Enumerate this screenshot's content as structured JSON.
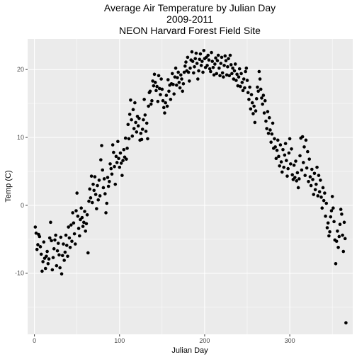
{
  "chart_data": {
    "type": "scatter",
    "title_lines": [
      "Average Air Temperature by Julian Day",
      "2009-2011",
      "NEON Harvard Forest Field Site"
    ],
    "xlabel": "Julian Day",
    "ylabel": "Temp (C)",
    "xlim": [
      -8,
      374
    ],
    "ylim": [
      -19,
      24.5
    ],
    "x_ticks": [
      0,
      100,
      200,
      300
    ],
    "x_tick_labels": [
      "0",
      "100",
      "200",
      "300"
    ],
    "y_ticks": [
      -10,
      0,
      10,
      20
    ],
    "y_tick_labels": [
      "-10",
      "0",
      "10",
      "20"
    ],
    "grid": true,
    "legend": "none",
    "colors": {
      "panel_bg": "#ebebeb",
      "grid_major": "#ffffff",
      "point": "#000000"
    },
    "points": [
      [
        1,
        -3.2
      ],
      [
        2,
        -4.1
      ],
      [
        3,
        -6.5
      ],
      [
        4,
        -5.8
      ],
      [
        5,
        -4.3
      ],
      [
        6,
        -4.6
      ],
      [
        7,
        -6.1
      ],
      [
        8,
        -7.2
      ],
      [
        9,
        -9.7
      ],
      [
        10,
        -8.3
      ],
      [
        11,
        -5.4
      ],
      [
        12,
        -7.8
      ],
      [
        13,
        -9.3
      ],
      [
        14,
        -7.5
      ],
      [
        15,
        -6.8
      ],
      [
        16,
        -8.6
      ],
      [
        17,
        -7.9
      ],
      [
        18,
        -4.8
      ],
      [
        19,
        -2.5
      ],
      [
        20,
        -5.2
      ],
      [
        21,
        -9.5
      ],
      [
        22,
        -7.7
      ],
      [
        23,
        -6.4
      ],
      [
        24,
        -5.1
      ],
      [
        25,
        -4.4
      ],
      [
        26,
        -8.9
      ],
      [
        27,
        -6.7
      ],
      [
        28,
        -5.6
      ],
      [
        29,
        -7.3
      ],
      [
        30,
        -9.2
      ],
      [
        31,
        -4.7
      ],
      [
        32,
        -10.1
      ],
      [
        33,
        -7.4
      ],
      [
        34,
        -5.7
      ],
      [
        35,
        -8.1
      ],
      [
        36,
        -6.9
      ],
      [
        37,
        -4.4
      ],
      [
        38,
        -5.9
      ],
      [
        39,
        -7.5
      ],
      [
        40,
        -3.2
      ],
      [
        41,
        -4.8
      ],
      [
        42,
        -6.2
      ],
      [
        43,
        -2.9
      ],
      [
        44,
        -5.3
      ],
      [
        45,
        -1.1
      ],
      [
        46,
        -2.6
      ],
      [
        47,
        -4.2
      ],
      [
        48,
        -5.7
      ],
      [
        49,
        -0.8
      ],
      [
        50,
        1.8
      ],
      [
        51,
        -1.6
      ],
      [
        52,
        -3.4
      ],
      [
        53,
        -4.5
      ],
      [
        54,
        -2.1
      ],
      [
        55,
        -0.4
      ],
      [
        56,
        -1.8
      ],
      [
        57,
        -3.1
      ],
      [
        58,
        -2.5
      ],
      [
        59,
        -0.9
      ],
      [
        60,
        -3.8
      ],
      [
        61,
        -2.7
      ],
      [
        62,
        -1.4
      ],
      [
        63,
        -7.0
      ],
      [
        64,
        0.6
      ],
      [
        65,
        2.4
      ],
      [
        66,
        1.1
      ],
      [
        67,
        4.3
      ],
      [
        68,
        0.4
      ],
      [
        69,
        3.1
      ],
      [
        70,
        2.2
      ],
      [
        71,
        4.2
      ],
      [
        72,
        1.6
      ],
      [
        73,
        -0.5
      ],
      [
        74,
        2.9
      ],
      [
        75,
        0.8
      ],
      [
        76,
        3.7
      ],
      [
        77,
        1.4
      ],
      [
        78,
        6.7
      ],
      [
        79,
        8.8
      ],
      [
        80,
        5.2
      ],
      [
        81,
        2.6
      ],
      [
        82,
        3.9
      ],
      [
        83,
        1.7
      ],
      [
        84,
        -1.1
      ],
      [
        85,
        0.3
      ],
      [
        86,
        4.1
      ],
      [
        87,
        2.8
      ],
      [
        88,
        3.5
      ],
      [
        89,
        6.1
      ],
      [
        90,
        5.4
      ],
      [
        91,
        4.6
      ],
      [
        92,
        8.9
      ],
      [
        93,
        7.8
      ],
      [
        94,
        5.7
      ],
      [
        95,
        3.1
      ],
      [
        96,
        7.2
      ],
      [
        97,
        6.3
      ],
      [
        98,
        9.4
      ],
      [
        99,
        6.9
      ],
      [
        100,
        5.6
      ],
      [
        101,
        7.7
      ],
      [
        102,
        6.2
      ],
      [
        103,
        4.4
      ],
      [
        104,
        6.6
      ],
      [
        105,
        8.2
      ],
      [
        106,
        7.1
      ],
      [
        107,
        9.9
      ],
      [
        108,
        6.8
      ],
      [
        109,
        8.4
      ],
      [
        110,
        11.9
      ],
      [
        111,
        9.8
      ],
      [
        112,
        13.4
      ],
      [
        113,
        15.5
      ],
      [
        114,
        12.6
      ],
      [
        115,
        10.2
      ],
      [
        116,
        14.1
      ],
      [
        117,
        11.3
      ],
      [
        118,
        15.1
      ],
      [
        119,
        12.2
      ],
      [
        120,
        10.8
      ],
      [
        121,
        13.1
      ],
      [
        122,
        11.7
      ],
      [
        123,
        12.8
      ],
      [
        124,
        9.6
      ],
      [
        125,
        10.6
      ],
      [
        126,
        9.7
      ],
      [
        127,
        11.2
      ],
      [
        128,
        12.6
      ],
      [
        129,
        15.6
      ],
      [
        130,
        13.3
      ],
      [
        131,
        10.9
      ],
      [
        132,
        12.1
      ],
      [
        133,
        9.8
      ],
      [
        134,
        14.6
      ],
      [
        135,
        16.6
      ],
      [
        136,
        16.8
      ],
      [
        137,
        14.9
      ],
      [
        138,
        15.4
      ],
      [
        139,
        18.3
      ],
      [
        140,
        17.6
      ],
      [
        141,
        19.3
      ],
      [
        142,
        18.1
      ],
      [
        143,
        16.9
      ],
      [
        144,
        17.5
      ],
      [
        145,
        15.3
      ],
      [
        146,
        19.1
      ],
      [
        147,
        17.2
      ],
      [
        148,
        16.3
      ],
      [
        149,
        18.6
      ],
      [
        150,
        17.1
      ],
      [
        151,
        15.4
      ],
      [
        152,
        14.4
      ],
      [
        153,
        13.6
      ],
      [
        154,
        15.1
      ],
      [
        155,
        16.2
      ],
      [
        156,
        14.6
      ],
      [
        157,
        18.5
      ],
      [
        158,
        16.8
      ],
      [
        159,
        17.7
      ],
      [
        160,
        15.6
      ],
      [
        161,
        17.9
      ],
      [
        162,
        19.4
      ],
      [
        163,
        17.8
      ],
      [
        164,
        16.4
      ],
      [
        165,
        18.9
      ],
      [
        166,
        20.2
      ],
      [
        167,
        17.7
      ],
      [
        168,
        18.8
      ],
      [
        169,
        19.6
      ],
      [
        170,
        18.1
      ],
      [
        171,
        17.3
      ],
      [
        172,
        19.2
      ],
      [
        173,
        18.6
      ],
      [
        174,
        16.8
      ],
      [
        175,
        17.9
      ],
      [
        176,
        19.6
      ],
      [
        177,
        20.5
      ],
      [
        178,
        21.1
      ],
      [
        179,
        19.8
      ],
      [
        180,
        21.8
      ],
      [
        181,
        19.6
      ],
      [
        182,
        18.3
      ],
      [
        183,
        20.2
      ],
      [
        184,
        21.4
      ],
      [
        185,
        22.6
      ],
      [
        186,
        21.2
      ],
      [
        187,
        19.5
      ],
      [
        188,
        20.4
      ],
      [
        189,
        21.6
      ],
      [
        190,
        22.4
      ],
      [
        191,
        20.9
      ],
      [
        192,
        18.6
      ],
      [
        193,
        19.8
      ],
      [
        194,
        21.5
      ],
      [
        195,
        22.3
      ],
      [
        196,
        20.6
      ],
      [
        197,
        21.2
      ],
      [
        198,
        19.6
      ],
      [
        199,
        22.8
      ],
      [
        200,
        21.6
      ],
      [
        201,
        20.3
      ],
      [
        202,
        21.8
      ],
      [
        203,
        20.6
      ],
      [
        204,
        22.1
      ],
      [
        205,
        21.4
      ],
      [
        206,
        20.1
      ],
      [
        207,
        19.7
      ],
      [
        208,
        22.5
      ],
      [
        209,
        21.2
      ],
      [
        210,
        20.3
      ],
      [
        211,
        19.2
      ],
      [
        212,
        20.8
      ],
      [
        213,
        21.7
      ],
      [
        214,
        19.4
      ],
      [
        215,
        21.3
      ],
      [
        216,
        22.1
      ],
      [
        217,
        20.2
      ],
      [
        218,
        19.1
      ],
      [
        219,
        20.9
      ],
      [
        220,
        21.8
      ],
      [
        221,
        19.5
      ],
      [
        222,
        18.9
      ],
      [
        223,
        20.6
      ],
      [
        224,
        22.0
      ],
      [
        225,
        21.3
      ],
      [
        226,
        19.2
      ],
      [
        227,
        20.4
      ],
      [
        228,
        21.6
      ],
      [
        229,
        19.1
      ],
      [
        230,
        22.1
      ],
      [
        231,
        20.7
      ],
      [
        232,
        19.4
      ],
      [
        233,
        20.2
      ],
      [
        234,
        18.6
      ],
      [
        235,
        19.8
      ],
      [
        236,
        20.8
      ],
      [
        237,
        18.4
      ],
      [
        238,
        19.3
      ],
      [
        239,
        17.6
      ],
      [
        240,
        18.9
      ],
      [
        241,
        20.1
      ],
      [
        242,
        17.5
      ],
      [
        243,
        19.4
      ],
      [
        244,
        18.1
      ],
      [
        245,
        16.9
      ],
      [
        246,
        18.6
      ],
      [
        247,
        17.3
      ],
      [
        248,
        19.7
      ],
      [
        249,
        20.2
      ],
      [
        250,
        18.4
      ],
      [
        251,
        16.6
      ],
      [
        252,
        15.6
      ],
      [
        253,
        17.4
      ],
      [
        254,
        14.2
      ],
      [
        255,
        16.3
      ],
      [
        256,
        15.1
      ],
      [
        257,
        13.5
      ],
      [
        258,
        14.6
      ],
      [
        259,
        12.2
      ],
      [
        260,
        13.9
      ],
      [
        261,
        15.7
      ],
      [
        262,
        17.4
      ],
      [
        263,
        16.8
      ],
      [
        264,
        19.7
      ],
      [
        265,
        18.6
      ],
      [
        266,
        17.1
      ],
      [
        267,
        15.8
      ],
      [
        268,
        14.9
      ],
      [
        269,
        16.2
      ],
      [
        270,
        13.6
      ],
      [
        271,
        15.4
      ],
      [
        272,
        12.4
      ],
      [
        273,
        11.3
      ],
      [
        274,
        13.8
      ],
      [
        275,
        10.6
      ],
      [
        276,
        12.9
      ],
      [
        277,
        11.1
      ],
      [
        278,
        9.3
      ],
      [
        279,
        10.5
      ],
      [
        280,
        12.1
      ],
      [
        281,
        8.4
      ],
      [
        282,
        9.8
      ],
      [
        283,
        8.6
      ],
      [
        284,
        6.9
      ],
      [
        285,
        8.1
      ],
      [
        286,
        9.6
      ],
      [
        287,
        7.2
      ],
      [
        288,
        5.8
      ],
      [
        289,
        8.9
      ],
      [
        290,
        6.4
      ],
      [
        291,
        4.9
      ],
      [
        292,
        8.2
      ],
      [
        293,
        5.6
      ],
      [
        294,
        7.4
      ],
      [
        295,
        9.1
      ],
      [
        296,
        6.6
      ],
      [
        297,
        4.3
      ],
      [
        298,
        5.4
      ],
      [
        299,
        7.7
      ],
      [
        300,
        9.8
      ],
      [
        301,
        6.1
      ],
      [
        302,
        8.3
      ],
      [
        303,
        4.5
      ],
      [
        304,
        3.8
      ],
      [
        305,
        5.9
      ],
      [
        306,
        4.1
      ],
      [
        307,
        6.5
      ],
      [
        308,
        3.6
      ],
      [
        309,
        4.8
      ],
      [
        310,
        2.6
      ],
      [
        311,
        3.9
      ],
      [
        312,
        7.3
      ],
      [
        313,
        9.9
      ],
      [
        314,
        5.2
      ],
      [
        315,
        10.1
      ],
      [
        316,
        6.3
      ],
      [
        317,
        8.6
      ],
      [
        318,
        4.4
      ],
      [
        319,
        9.6
      ],
      [
        320,
        5.5
      ],
      [
        321,
        7.9
      ],
      [
        322,
        3.5
      ],
      [
        323,
        6.8
      ],
      [
        324,
        4.2
      ],
      [
        325,
        2.9
      ],
      [
        326,
        5.3
      ],
      [
        327,
        3.8
      ],
      [
        328,
        1.6
      ],
      [
        329,
        4.7
      ],
      [
        330,
        2.3
      ],
      [
        331,
        3.1
      ],
      [
        332,
        5.6
      ],
      [
        333,
        1.4
      ],
      [
        334,
        4.4
      ],
      [
        335,
        2.0
      ],
      [
        336,
        3.7
      ],
      [
        337,
        1.2
      ],
      [
        338,
        -0.4
      ],
      [
        339,
        2.6
      ],
      [
        340,
        0.7
      ],
      [
        341,
        1.8
      ],
      [
        342,
        -1.6
      ],
      [
        343,
        0.3
      ],
      [
        344,
        -3.3
      ],
      [
        345,
        -2.6
      ],
      [
        346,
        -4.5
      ],
      [
        347,
        -3.9
      ],
      [
        348,
        -1.7
      ],
      [
        349,
        -0.8
      ],
      [
        350,
        1.3
      ],
      [
        351,
        -0.4
      ],
      [
        352,
        -2.4
      ],
      [
        353,
        -5.1
      ],
      [
        354,
        -8.6
      ],
      [
        355,
        -5.3
      ],
      [
        356,
        -3.8
      ],
      [
        357,
        -6.2
      ],
      [
        358,
        -4.6
      ],
      [
        359,
        -2.8
      ],
      [
        360,
        -0.6
      ],
      [
        361,
        -1.3
      ],
      [
        362,
        -4.4
      ],
      [
        363,
        -6.8
      ],
      [
        364,
        -2.5
      ],
      [
        365,
        -4.9
      ],
      [
        366,
        -17.3
      ]
    ]
  }
}
